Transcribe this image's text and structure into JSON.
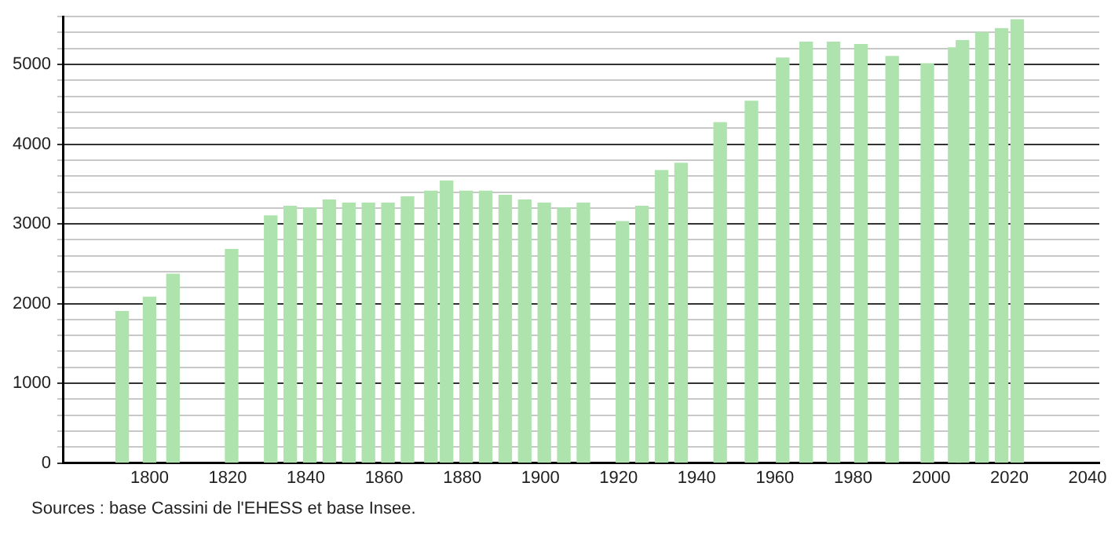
{
  "chart_data": {
    "type": "bar",
    "x": [
      1793,
      1800,
      1806,
      1821,
      1831,
      1836,
      1841,
      1846,
      1851,
      1856,
      1861,
      1866,
      1872,
      1876,
      1881,
      1886,
      1891,
      1896,
      1901,
      1906,
      1911,
      1921,
      1926,
      1931,
      1936,
      1946,
      1954,
      1962,
      1968,
      1975,
      1982,
      1990,
      1999,
      2006,
      2008,
      2013,
      2018,
      2022
    ],
    "series": [
      {
        "color": "#aee3ae",
        "values": [
          1900,
          2080,
          2370,
          2680,
          3100,
          3220,
          3200,
          3300,
          3260,
          3260,
          3260,
          3340,
          3410,
          3540,
          3410,
          3410,
          3360,
          3300,
          3260,
          3200,
          3260,
          3030,
          3220,
          3670,
          3760,
          4270,
          4540,
          5080,
          5280,
          5280,
          5250,
          5100,
          5010,
          5210,
          5300,
          5400,
          5450,
          5560
        ]
      }
    ],
    "xlim": [
      1778,
      2043
    ],
    "xticks": [
      1800,
      1820,
      1840,
      1860,
      1880,
      1900,
      1920,
      1940,
      1960,
      1980,
      2000,
      2020,
      2040
    ],
    "ylim": [
      0,
      5600
    ],
    "yticks": [
      0,
      {
        "value": 200,
        "label": null
      },
      {
        "value": 400,
        "label": null
      },
      {
        "value": 600,
        "label": null
      },
      {
        "value": 800,
        "label": null
      },
      1000,
      {
        "value": 1200,
        "label": null
      },
      {
        "value": 1400,
        "label": null
      },
      {
        "value": 1600,
        "label": null
      },
      {
        "value": 1800,
        "label": null
      },
      2000,
      {
        "value": 2200,
        "label": null
      },
      {
        "value": 2400,
        "label": null
      },
      {
        "value": 2600,
        "label": null
      },
      {
        "value": 2800,
        "label": null
      },
      3000,
      {
        "value": 3200,
        "label": null
      },
      {
        "value": 3400,
        "label": null
      },
      {
        "value": 3600,
        "label": null
      },
      {
        "value": 3800,
        "label": null
      },
      4000,
      {
        "value": 4200,
        "label": null
      },
      {
        "value": 4400,
        "label": null
      },
      {
        "value": 4600,
        "label": null
      },
      {
        "value": 4800,
        "label": null
      },
      5000,
      {
        "value": 5200,
        "label": null
      },
      {
        "value": 5400,
        "label": null
      },
      {
        "value": 5600,
        "label": null
      }
    ],
    "grid": "y",
    "annotations": [
      "Sources : base Cassini de l'EHESS et base Insee."
    ]
  }
}
